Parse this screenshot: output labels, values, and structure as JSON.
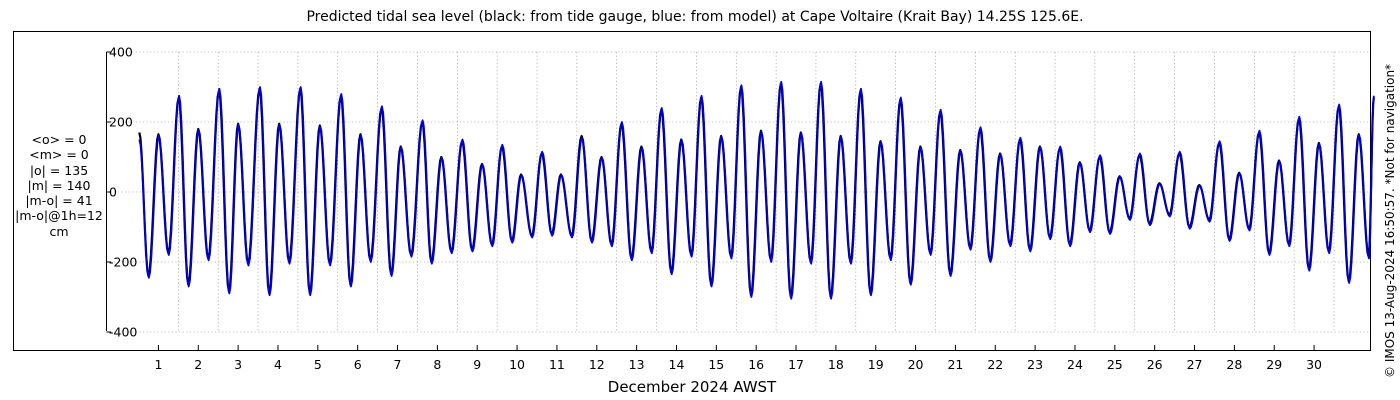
{
  "title": "Predicted tidal sea level (black: from tide gauge, blue: from model) at Cape Voltaire (Krait Bay) 14.25S 125.6E.",
  "copyright": "© IMOS 13-Aug-2024 16:50:57. *Not for navigation*",
  "stats": [
    "<o> = 0",
    "<m> = 0",
    "|o| = 135",
    "|m| = 140",
    "|m-o| = 41",
    "|m-o|@1h=12",
    "cm"
  ],
  "colors": {
    "gauge": "#000000",
    "model": "#0000dd",
    "grid": "#888888"
  },
  "chart_data": {
    "type": "line",
    "title": "Predicted tidal sea level (black: from tide gauge, blue: from model) at Cape Voltaire (Krait Bay) 14.25S 125.6E.",
    "xlabel": "December 2024 AWST",
    "ylabel": "",
    "xlim": [
      0,
      31
    ],
    "ylim": [
      -400,
      400
    ],
    "x_ticks": [
      1,
      2,
      3,
      4,
      5,
      6,
      7,
      8,
      9,
      10,
      11,
      12,
      13,
      14,
      15,
      16,
      17,
      18,
      19,
      20,
      21,
      22,
      23,
      24,
      25,
      26,
      27,
      28,
      29,
      30
    ],
    "y_ticks": [
      400,
      200,
      0,
      -200,
      -400
    ],
    "grid": true,
    "series": [
      {
        "name": "black: from tide gauge",
        "color": "#000000",
        "extremes": [
          [
            0.02,
            170
          ],
          [
            0.25,
            -240
          ],
          [
            0.5,
            165
          ],
          [
            0.75,
            -175
          ],
          [
            1.01,
            270
          ],
          [
            1.25,
            -265
          ],
          [
            1.5,
            180
          ],
          [
            1.75,
            -190
          ],
          [
            2.02,
            290
          ],
          [
            2.27,
            -285
          ],
          [
            2.5,
            195
          ],
          [
            2.75,
            -205
          ],
          [
            3.04,
            295
          ],
          [
            3.28,
            -290
          ],
          [
            3.53,
            195
          ],
          [
            3.78,
            -200
          ],
          [
            4.06,
            295
          ],
          [
            4.3,
            -290
          ],
          [
            4.55,
            190
          ],
          [
            4.8,
            -205
          ],
          [
            5.08,
            275
          ],
          [
            5.32,
            -265
          ],
          [
            5.57,
            165
          ],
          [
            5.82,
            -195
          ],
          [
            6.1,
            240
          ],
          [
            6.34,
            -235
          ],
          [
            6.58,
            130
          ],
          [
            6.84,
            -180
          ],
          [
            7.12,
            200
          ],
          [
            7.35,
            -200
          ],
          [
            7.6,
            100
          ],
          [
            7.85,
            -170
          ],
          [
            8.12,
            145
          ],
          [
            8.37,
            -165
          ],
          [
            8.62,
            80
          ],
          [
            8.87,
            -150
          ],
          [
            9.12,
            130
          ],
          [
            9.37,
            -140
          ],
          [
            9.6,
            50
          ],
          [
            9.87,
            -125
          ],
          [
            10.12,
            110
          ],
          [
            10.37,
            -120
          ],
          [
            10.6,
            50
          ],
          [
            10.87,
            -125
          ],
          [
            11.12,
            160
          ],
          [
            11.37,
            -140
          ],
          [
            11.62,
            100
          ],
          [
            11.87,
            -150
          ],
          [
            12.12,
            195
          ],
          [
            12.37,
            -190
          ],
          [
            12.62,
            130
          ],
          [
            12.87,
            -170
          ],
          [
            13.12,
            235
          ],
          [
            13.37,
            -230
          ],
          [
            13.62,
            150
          ],
          [
            13.87,
            -180
          ],
          [
            14.12,
            270
          ],
          [
            14.37,
            -265
          ],
          [
            14.62,
            160
          ],
          [
            14.87,
            -185
          ],
          [
            15.12,
            300
          ],
          [
            15.37,
            -295
          ],
          [
            15.62,
            175
          ],
          [
            15.87,
            -195
          ],
          [
            16.12,
            310
          ],
          [
            16.37,
            -300
          ],
          [
            16.62,
            170
          ],
          [
            16.87,
            -200
          ],
          [
            17.12,
            310
          ],
          [
            17.37,
            -300
          ],
          [
            17.62,
            160
          ],
          [
            17.87,
            -200
          ],
          [
            18.12,
            290
          ],
          [
            18.37,
            -290
          ],
          [
            18.62,
            145
          ],
          [
            18.87,
            -190
          ],
          [
            19.12,
            265
          ],
          [
            19.37,
            -260
          ],
          [
            19.62,
            130
          ],
          [
            19.87,
            -175
          ],
          [
            20.12,
            230
          ],
          [
            20.37,
            -235
          ],
          [
            20.62,
            120
          ],
          [
            20.87,
            -160
          ],
          [
            21.12,
            180
          ],
          [
            21.37,
            -195
          ],
          [
            21.62,
            110
          ],
          [
            21.87,
            -150
          ],
          [
            22.12,
            150
          ],
          [
            22.37,
            -165
          ],
          [
            22.62,
            130
          ],
          [
            22.87,
            -130
          ],
          [
            23.12,
            125
          ],
          [
            23.37,
            -150
          ],
          [
            23.62,
            85
          ],
          [
            23.87,
            -110
          ],
          [
            24.12,
            100
          ],
          [
            24.37,
            -115
          ],
          [
            24.62,
            45
          ],
          [
            24.87,
            -75
          ],
          [
            25.12,
            105
          ],
          [
            25.37,
            -90
          ],
          [
            25.62,
            25
          ],
          [
            25.87,
            -65
          ],
          [
            26.12,
            110
          ],
          [
            26.37,
            -100
          ],
          [
            26.62,
            20
          ],
          [
            26.87,
            -80
          ],
          [
            27.12,
            140
          ],
          [
            27.37,
            -135
          ],
          [
            27.62,
            55
          ],
          [
            27.87,
            -105
          ],
          [
            28.12,
            170
          ],
          [
            28.37,
            -175
          ],
          [
            28.62,
            90
          ],
          [
            28.87,
            -150
          ],
          [
            29.12,
            210
          ],
          [
            29.37,
            -220
          ],
          [
            29.62,
            140
          ],
          [
            29.87,
            -170
          ],
          [
            30.12,
            245
          ],
          [
            30.37,
            -255
          ],
          [
            30.62,
            165
          ],
          [
            30.87,
            -185
          ],
          [
            31.0,
            270
          ]
        ]
      },
      {
        "name": "blue: from model",
        "color": "#0000dd",
        "extremes": [
          [
            0.02,
            150
          ],
          [
            0.26,
            -245
          ],
          [
            0.51,
            160
          ],
          [
            0.76,
            -180
          ],
          [
            1.02,
            275
          ],
          [
            1.26,
            -270
          ],
          [
            1.51,
            178
          ],
          [
            1.76,
            -195
          ],
          [
            2.03,
            295
          ],
          [
            2.28,
            -290
          ],
          [
            2.51,
            192
          ],
          [
            2.76,
            -210
          ],
          [
            3.05,
            300
          ],
          [
            3.29,
            -295
          ],
          [
            3.54,
            192
          ],
          [
            3.79,
            -205
          ],
          [
            4.07,
            300
          ],
          [
            4.31,
            -295
          ],
          [
            4.56,
            188
          ],
          [
            4.81,
            -210
          ],
          [
            5.09,
            280
          ],
          [
            5.33,
            -270
          ],
          [
            5.58,
            162
          ],
          [
            5.83,
            -200
          ],
          [
            6.11,
            245
          ],
          [
            6.35,
            -240
          ],
          [
            6.59,
            128
          ],
          [
            6.85,
            -185
          ],
          [
            7.13,
            205
          ],
          [
            7.36,
            -205
          ],
          [
            7.61,
            98
          ],
          [
            7.86,
            -175
          ],
          [
            8.13,
            150
          ],
          [
            8.38,
            -170
          ],
          [
            8.63,
            78
          ],
          [
            8.88,
            -155
          ],
          [
            9.13,
            135
          ],
          [
            9.38,
            -145
          ],
          [
            9.61,
            48
          ],
          [
            9.88,
            -130
          ],
          [
            10.13,
            115
          ],
          [
            10.38,
            -125
          ],
          [
            10.61,
            48
          ],
          [
            10.88,
            -130
          ],
          [
            11.13,
            155
          ],
          [
            11.38,
            -145
          ],
          [
            11.63,
            98
          ],
          [
            11.88,
            -155
          ],
          [
            12.13,
            200
          ],
          [
            12.38,
            -195
          ],
          [
            12.63,
            128
          ],
          [
            12.88,
            -175
          ],
          [
            13.13,
            240
          ],
          [
            13.38,
            -235
          ],
          [
            13.63,
            148
          ],
          [
            13.88,
            -185
          ],
          [
            14.13,
            275
          ],
          [
            14.38,
            -270
          ],
          [
            14.63,
            158
          ],
          [
            14.88,
            -190
          ],
          [
            15.13,
            305
          ],
          [
            15.38,
            -300
          ],
          [
            15.63,
            172
          ],
          [
            15.88,
            -200
          ],
          [
            16.13,
            315
          ],
          [
            16.38,
            -305
          ],
          [
            16.63,
            168
          ],
          [
            16.88,
            -205
          ],
          [
            17.13,
            315
          ],
          [
            17.38,
            -305
          ],
          [
            17.63,
            158
          ],
          [
            17.88,
            -205
          ],
          [
            18.13,
            295
          ],
          [
            18.38,
            -295
          ],
          [
            18.63,
            143
          ],
          [
            18.88,
            -195
          ],
          [
            19.13,
            270
          ],
          [
            19.38,
            -265
          ],
          [
            19.63,
            128
          ],
          [
            19.88,
            -180
          ],
          [
            20.13,
            235
          ],
          [
            20.38,
            -240
          ],
          [
            20.63,
            118
          ],
          [
            20.88,
            -165
          ],
          [
            21.13,
            185
          ],
          [
            21.38,
            -200
          ],
          [
            21.63,
            108
          ],
          [
            21.88,
            -155
          ],
          [
            22.13,
            155
          ],
          [
            22.38,
            -170
          ],
          [
            22.63,
            128
          ],
          [
            22.88,
            -135
          ],
          [
            23.13,
            130
          ],
          [
            23.38,
            -155
          ],
          [
            23.63,
            83
          ],
          [
            23.88,
            -115
          ],
          [
            24.13,
            105
          ],
          [
            24.38,
            -120
          ],
          [
            24.63,
            43
          ],
          [
            24.88,
            -80
          ],
          [
            25.13,
            110
          ],
          [
            25.38,
            -95
          ],
          [
            25.63,
            23
          ],
          [
            25.88,
            -70
          ],
          [
            26.13,
            115
          ],
          [
            26.38,
            -105
          ],
          [
            26.63,
            18
          ],
          [
            26.88,
            -85
          ],
          [
            27.13,
            145
          ],
          [
            27.38,
            -140
          ],
          [
            27.63,
            53
          ],
          [
            27.88,
            -110
          ],
          [
            28.13,
            175
          ],
          [
            28.38,
            -180
          ],
          [
            28.63,
            88
          ],
          [
            28.88,
            -155
          ],
          [
            29.13,
            215
          ],
          [
            29.38,
            -225
          ],
          [
            29.63,
            138
          ],
          [
            29.88,
            -175
          ],
          [
            30.13,
            250
          ],
          [
            30.38,
            -260
          ],
          [
            30.63,
            163
          ],
          [
            30.88,
            -190
          ],
          [
            31.0,
            275
          ]
        ]
      }
    ]
  }
}
